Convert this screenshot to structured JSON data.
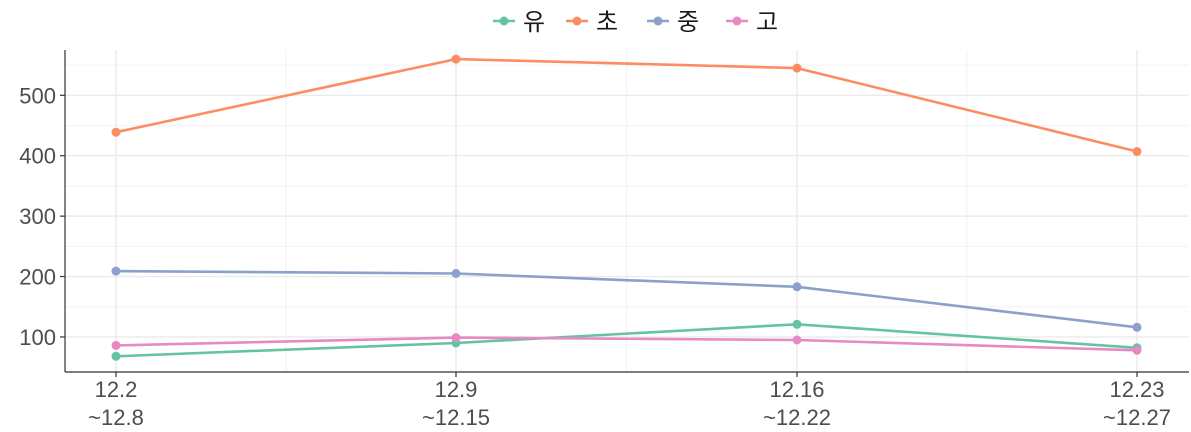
{
  "chart_data": {
    "type": "line",
    "title": "",
    "xlabel": "",
    "ylabel": "",
    "categories": [
      {
        "line1": "12.2",
        "line2": "~12.8"
      },
      {
        "line1": "12.9",
        "line2": "~12.15"
      },
      {
        "line1": "12.16",
        "line2": "~12.22"
      },
      {
        "line1": "12.23",
        "line2": "~12.27"
      }
    ],
    "yticks": [
      100,
      200,
      300,
      400,
      500
    ],
    "ylim": [
      42,
      575
    ],
    "grid": true,
    "legend_position": "top",
    "series": [
      {
        "name": "유",
        "color": "#66c2a5",
        "values": [
          68,
          90,
          121,
          82
        ]
      },
      {
        "name": "초",
        "color": "#fc8d62",
        "values": [
          439,
          560,
          545,
          407
        ]
      },
      {
        "name": "중",
        "color": "#8da0cb",
        "values": [
          209,
          205,
          183,
          116
        ]
      },
      {
        "name": "고",
        "color": "#e78ac3",
        "values": [
          86,
          99,
          95,
          78
        ]
      }
    ]
  }
}
